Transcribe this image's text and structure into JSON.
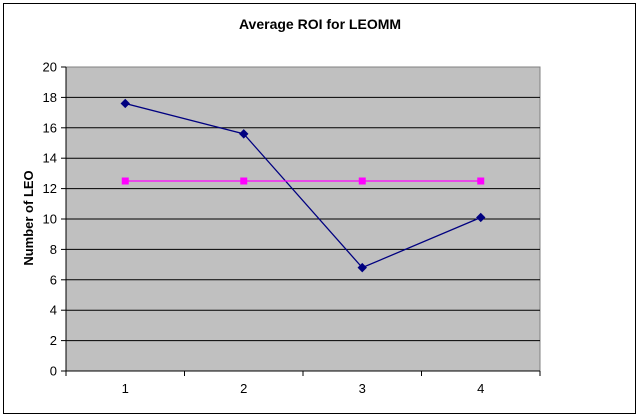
{
  "chart_data": {
    "type": "line",
    "title": "Average ROI for LEOMM",
    "xlabel": "",
    "ylabel": "Number of LEO",
    "categories": [
      "1",
      "2",
      "3",
      "4"
    ],
    "ylim": [
      0,
      20
    ],
    "yticks": [
      "0",
      "2",
      "4",
      "6",
      "8",
      "10",
      "12",
      "14",
      "16",
      "18",
      "20"
    ],
    "grid": true,
    "legend": "none",
    "plot_background": "#c0c0c0",
    "series": [
      {
        "values": [
          17.6,
          15.6,
          6.8,
          10.1
        ],
        "color": "#000080",
        "marker": "diamond"
      },
      {
        "values": [
          12.5,
          12.5,
          12.5,
          12.5
        ],
        "color": "#ff00ff",
        "marker": "square"
      }
    ]
  }
}
